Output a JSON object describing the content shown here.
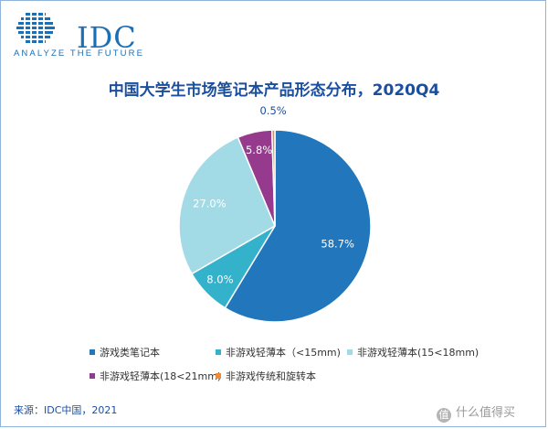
{
  "logo": {
    "text": "IDC",
    "tagline": "ANALYZE THE FUTURE"
  },
  "title": "中国大学生市场笔记本产品形态分布，2020Q4",
  "chart_data": {
    "type": "pie",
    "title": "中国大学生市场笔记本产品形态分布，2020Q4",
    "slices": [
      {
        "name": "游戏类笔记本",
        "value": 58.7,
        "label": "58.7%",
        "color": "#2176bc"
      },
      {
        "name": "非游戏轻薄本（<15mm)",
        "value": 8.0,
        "label": "8.0%",
        "color": "#34b1cb"
      },
      {
        "name": "非游戏轻薄本(15<18mm)",
        "value": 27.0,
        "label": "27.0%",
        "color": "#a2dbe6"
      },
      {
        "name": "非游戏轻薄本(18<21mm)",
        "value": 5.8,
        "label": "5.8%",
        "color": "#953a8d"
      },
      {
        "name": "非游戏传统和旋转本",
        "value": 0.5,
        "label": "0.5%",
        "color": "#f08b34"
      }
    ],
    "legend_position": "bottom"
  },
  "source": "来源：IDC中国，2021",
  "watermark": "什么值得买"
}
